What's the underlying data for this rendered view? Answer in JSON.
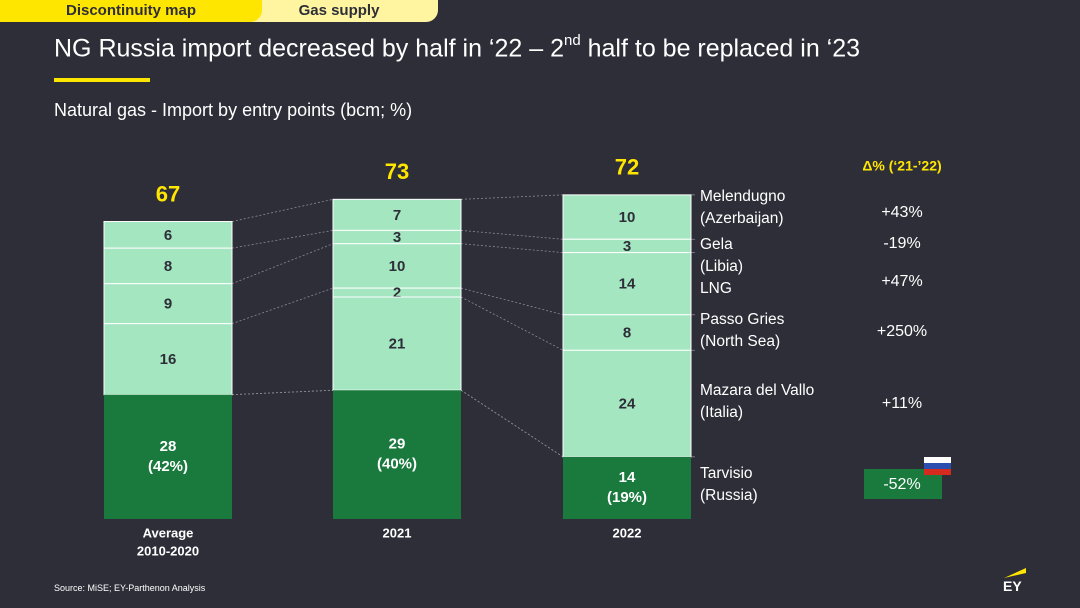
{
  "tabs": [
    {
      "label": "Discontinuity map",
      "active": true
    },
    {
      "label": "Gas supply",
      "active": false
    }
  ],
  "title": {
    "main": "NG Russia import decreased by half in ‘22 – 2",
    "sup": "nd",
    "rest": " half to be replaced in ‘23"
  },
  "subtitle": "Natural gas - Import by entry points (bcm; %)",
  "source": "Source: MiSE; EY-Parthenon Analysis",
  "logo_text": "EY",
  "colors": {
    "light": "#a3e6c0",
    "dark": "#1a7a3e",
    "accent": "#ffe600",
    "background": "#2e2e38"
  },
  "chart_data": {
    "type": "bar",
    "stacked": true,
    "categories": [
      "Average\n2010-2020",
      "2021",
      "2022"
    ],
    "category_lines": [
      [
        "Average",
        "2010-2020"
      ],
      [
        "2021"
      ],
      [
        "2022"
      ]
    ],
    "totals": [
      "67",
      "73",
      "72"
    ],
    "delta_header": "Δ%  (‘21-’22)",
    "series": [
      {
        "name": "Melendugno (Azerbaijan)",
        "label_lines": [
          "Melendugno",
          "(Azerbaijan)"
        ],
        "values": [
          6,
          7,
          10
        ],
        "labels": [
          "6",
          "7",
          "10"
        ],
        "delta": "+43%"
      },
      {
        "name": "Gela (Libia)",
        "label_lines": [
          "Gela",
          "(Libia)"
        ],
        "values": [
          8,
          3,
          3
        ],
        "labels": [
          "8",
          "3",
          "3"
        ],
        "delta": "-19%"
      },
      {
        "name": "LNG",
        "label_lines": [
          "LNG"
        ],
        "values": [
          9,
          10,
          14
        ],
        "labels": [
          "9",
          "10",
          "14"
        ],
        "delta": "+47%"
      },
      {
        "name": "Passo Gries (North Sea)",
        "label_lines": [
          "Passo Gries",
          "(North Sea)"
        ],
        "values": [
          16,
          2,
          8
        ],
        "labels": [
          "16",
          "2",
          "8"
        ],
        "delta": "+250%"
      },
      {
        "name": "Mazara del Vallo (Italia)",
        "label_lines": [
          "Mazara del Vallo",
          "(Italia)"
        ],
        "values": [
          0,
          21,
          24
        ],
        "labels": [
          "",
          "21",
          "24"
        ],
        "delta": "+11%"
      },
      {
        "name": "Tarvisio (Russia)",
        "label_lines": [
          "Tarvisio",
          "(Russia)"
        ],
        "values": [
          28,
          29,
          14
        ],
        "labels": [
          "28\n(42%)",
          "29\n(40%)",
          "14\n(19%)"
        ],
        "label_lines_per_bar": [
          [
            "28",
            "(42%)"
          ],
          [
            "29",
            "(40%)"
          ],
          [
            "14",
            "(19%)"
          ]
        ],
        "delta": "-52%",
        "highlight": true
      }
    ],
    "legend": "right",
    "grid": false
  }
}
